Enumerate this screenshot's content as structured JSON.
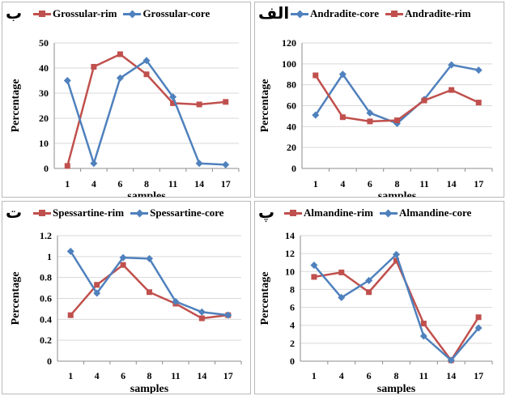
{
  "colors": {
    "red": "#c0504d",
    "blue": "#4f81bd",
    "grid": "#d9d9d9",
    "axis": "#8c8c8c"
  },
  "panels": [
    {
      "tag": "ب",
      "legend": [
        {
          "label": "Grossular-rim",
          "color": "#c0504d",
          "marker": "square"
        },
        {
          "label": "Grossular-core",
          "color": "#4f81bd",
          "marker": "diamond"
        }
      ]
    },
    {
      "tag": "الف",
      "legend": [
        {
          "label": "Andradite-core",
          "color": "#4f81bd",
          "marker": "diamond"
        },
        {
          "label": "Andradite-rim",
          "color": "#c0504d",
          "marker": "square"
        }
      ]
    },
    {
      "tag": "ت",
      "legend": [
        {
          "label": "Spessartine-rim",
          "color": "#c0504d",
          "marker": "square"
        },
        {
          "label": "Spessartine-core",
          "color": "#4f81bd",
          "marker": "diamond"
        }
      ]
    },
    {
      "tag": "پ",
      "legend": [
        {
          "label": "Almandine-rim",
          "color": "#c0504d",
          "marker": "square"
        },
        {
          "label": "Almandine-core",
          "color": "#4f81bd",
          "marker": "diamond"
        }
      ]
    }
  ],
  "chart_data": [
    {
      "type": "line",
      "ylabel": "Percentage",
      "xlabel": "samples",
      "categories": [
        "1",
        "4",
        "6",
        "8",
        "11",
        "14",
        "17"
      ],
      "ylim": [
        0,
        50
      ],
      "yticks": [
        "0",
        "10",
        "20",
        "30",
        "40",
        "50"
      ],
      "grid": true,
      "legend_position": "top",
      "series": [
        {
          "name": "Grossular-rim",
          "color": "#c0504d",
          "marker": "square",
          "values": [
            1,
            40.5,
            45.5,
            37.5,
            26,
            25.5,
            26.5
          ]
        },
        {
          "name": "Grossular-core",
          "color": "#4f81bd",
          "marker": "diamond",
          "values": [
            35,
            2,
            36,
            43,
            28.5,
            2,
            1.5
          ]
        }
      ]
    },
    {
      "type": "line",
      "ylabel": "Percentage",
      "xlabel": "samples",
      "categories": [
        "1",
        "4",
        "6",
        "8",
        "11",
        "14",
        "17"
      ],
      "ylim": [
        0,
        120
      ],
      "yticks": [
        "0",
        "20",
        "40",
        "60",
        "80",
        "100",
        "120"
      ],
      "grid": true,
      "legend_position": "top",
      "series": [
        {
          "name": "Andradite-core",
          "color": "#4f81bd",
          "marker": "diamond",
          "values": [
            51,
            90,
            53,
            43,
            66,
            99,
            94
          ]
        },
        {
          "name": "Andradite-rim",
          "color": "#c0504d",
          "marker": "square",
          "values": [
            89,
            49,
            45,
            46,
            65,
            75,
            63
          ]
        }
      ]
    },
    {
      "type": "line",
      "ylabel": "Percentage",
      "xlabel": "samples",
      "categories": [
        "1",
        "4",
        "6",
        "8",
        "11",
        "14",
        "17"
      ],
      "ylim": [
        0,
        1.2
      ],
      "yticks": [
        "0",
        "0.2",
        "0.4",
        "0.6",
        "0.8",
        "1",
        "1.2"
      ],
      "grid": true,
      "legend_position": "top",
      "series": [
        {
          "name": "Spessartine-rim",
          "color": "#c0504d",
          "marker": "square",
          "values": [
            0.44,
            0.73,
            0.92,
            0.66,
            0.55,
            0.41,
            0.44
          ]
        },
        {
          "name": "Spessartine-core",
          "color": "#4f81bd",
          "marker": "diamond",
          "values": [
            1.05,
            0.65,
            0.99,
            0.98,
            0.57,
            0.47,
            0.44
          ]
        }
      ]
    },
    {
      "type": "line",
      "ylabel": "Percentage",
      "xlabel": "samples",
      "categories": [
        "1",
        "4",
        "6",
        "8",
        "11",
        "14",
        "17"
      ],
      "ylim": [
        0,
        14
      ],
      "yticks": [
        "0",
        "2",
        "4",
        "6",
        "8",
        "10",
        "12",
        "14"
      ],
      "grid": true,
      "legend_position": "top",
      "series": [
        {
          "name": "Almandine-rim",
          "color": "#c0504d",
          "marker": "square",
          "values": [
            9.4,
            9.9,
            7.7,
            11.2,
            4.2,
            0.1,
            4.9
          ]
        },
        {
          "name": "Almandine-core",
          "color": "#4f81bd",
          "marker": "diamond",
          "values": [
            10.7,
            7.1,
            9.0,
            11.9,
            2.8,
            0.1,
            3.7
          ]
        }
      ]
    }
  ]
}
